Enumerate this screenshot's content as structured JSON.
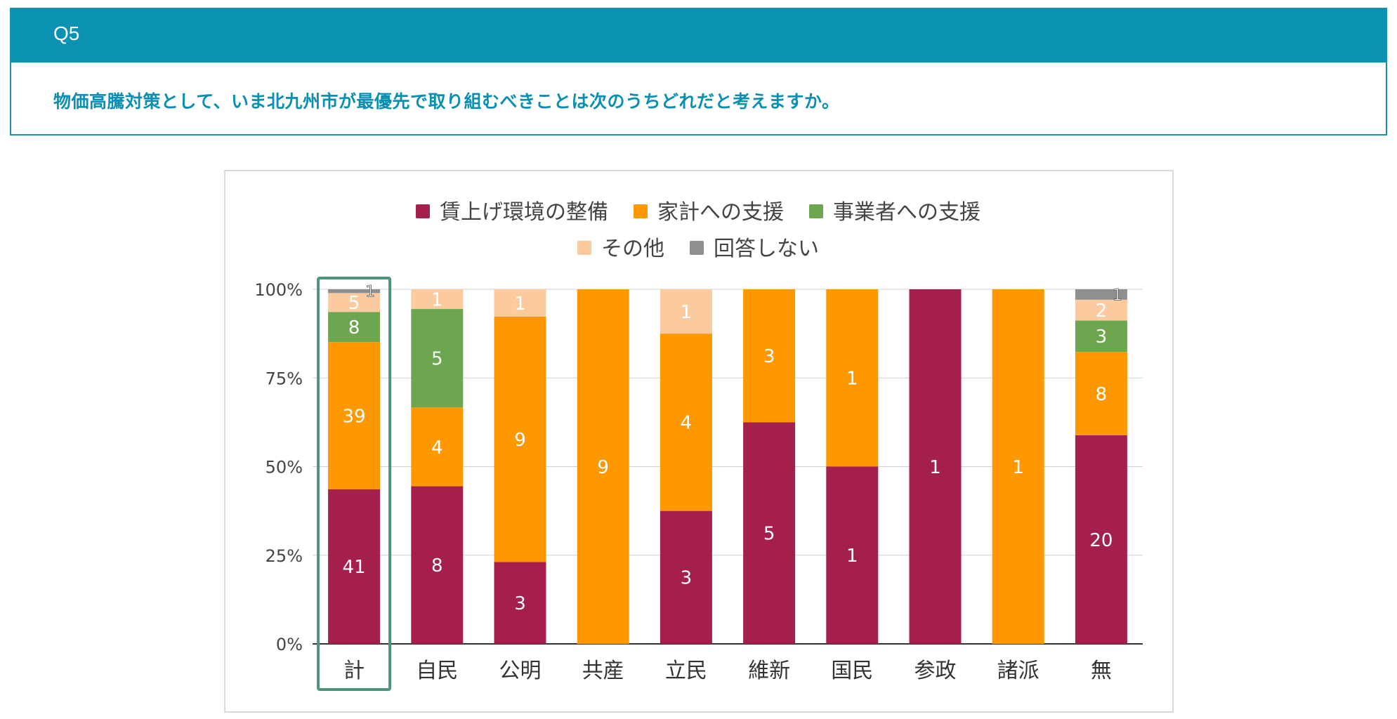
{
  "question": {
    "number": "Q5",
    "text": "物価高騰対策として、いま北九州市が最優先で取り組むべきことは次のうちどれだと考えますか。"
  },
  "colors": {
    "header_bg": "#0b91b2",
    "question_text": "#0b8fb0",
    "highlight_box": "#4e927f"
  },
  "chart_data": {
    "type": "bar",
    "stacked": true,
    "normalized": true,
    "categories": [
      "計",
      "自民",
      "公明",
      "共産",
      "立民",
      "維新",
      "国民",
      "参政",
      "諸派",
      "無"
    ],
    "series": [
      {
        "name": "賃上げ環境の整備",
        "color": "#a51f4d",
        "values": [
          41,
          8,
          3,
          0,
          3,
          5,
          1,
          1,
          0,
          20
        ]
      },
      {
        "name": "家計への支援",
        "color": "#fe9800",
        "values": [
          39,
          4,
          9,
          9,
          4,
          3,
          1,
          0,
          1,
          8
        ]
      },
      {
        "name": "事業者への支援",
        "color": "#6ca64e",
        "values": [
          8,
          5,
          0,
          0,
          0,
          0,
          0,
          0,
          0,
          3
        ]
      },
      {
        "name": "その他",
        "color": "#fbcb9f",
        "values": [
          5,
          1,
          1,
          0,
          1,
          0,
          0,
          0,
          0,
          2
        ]
      },
      {
        "name": "回答しない",
        "color": "#8f8f8f",
        "values": [
          1,
          0,
          0,
          0,
          0,
          0,
          0,
          0,
          0,
          1
        ]
      }
    ],
    "yticks": [
      "0%",
      "25%",
      "50%",
      "75%",
      "100%"
    ],
    "ylim": [
      0,
      100
    ],
    "legend_position": "top",
    "highlighted_category": "計",
    "xlabel": "",
    "ylabel": ""
  }
}
